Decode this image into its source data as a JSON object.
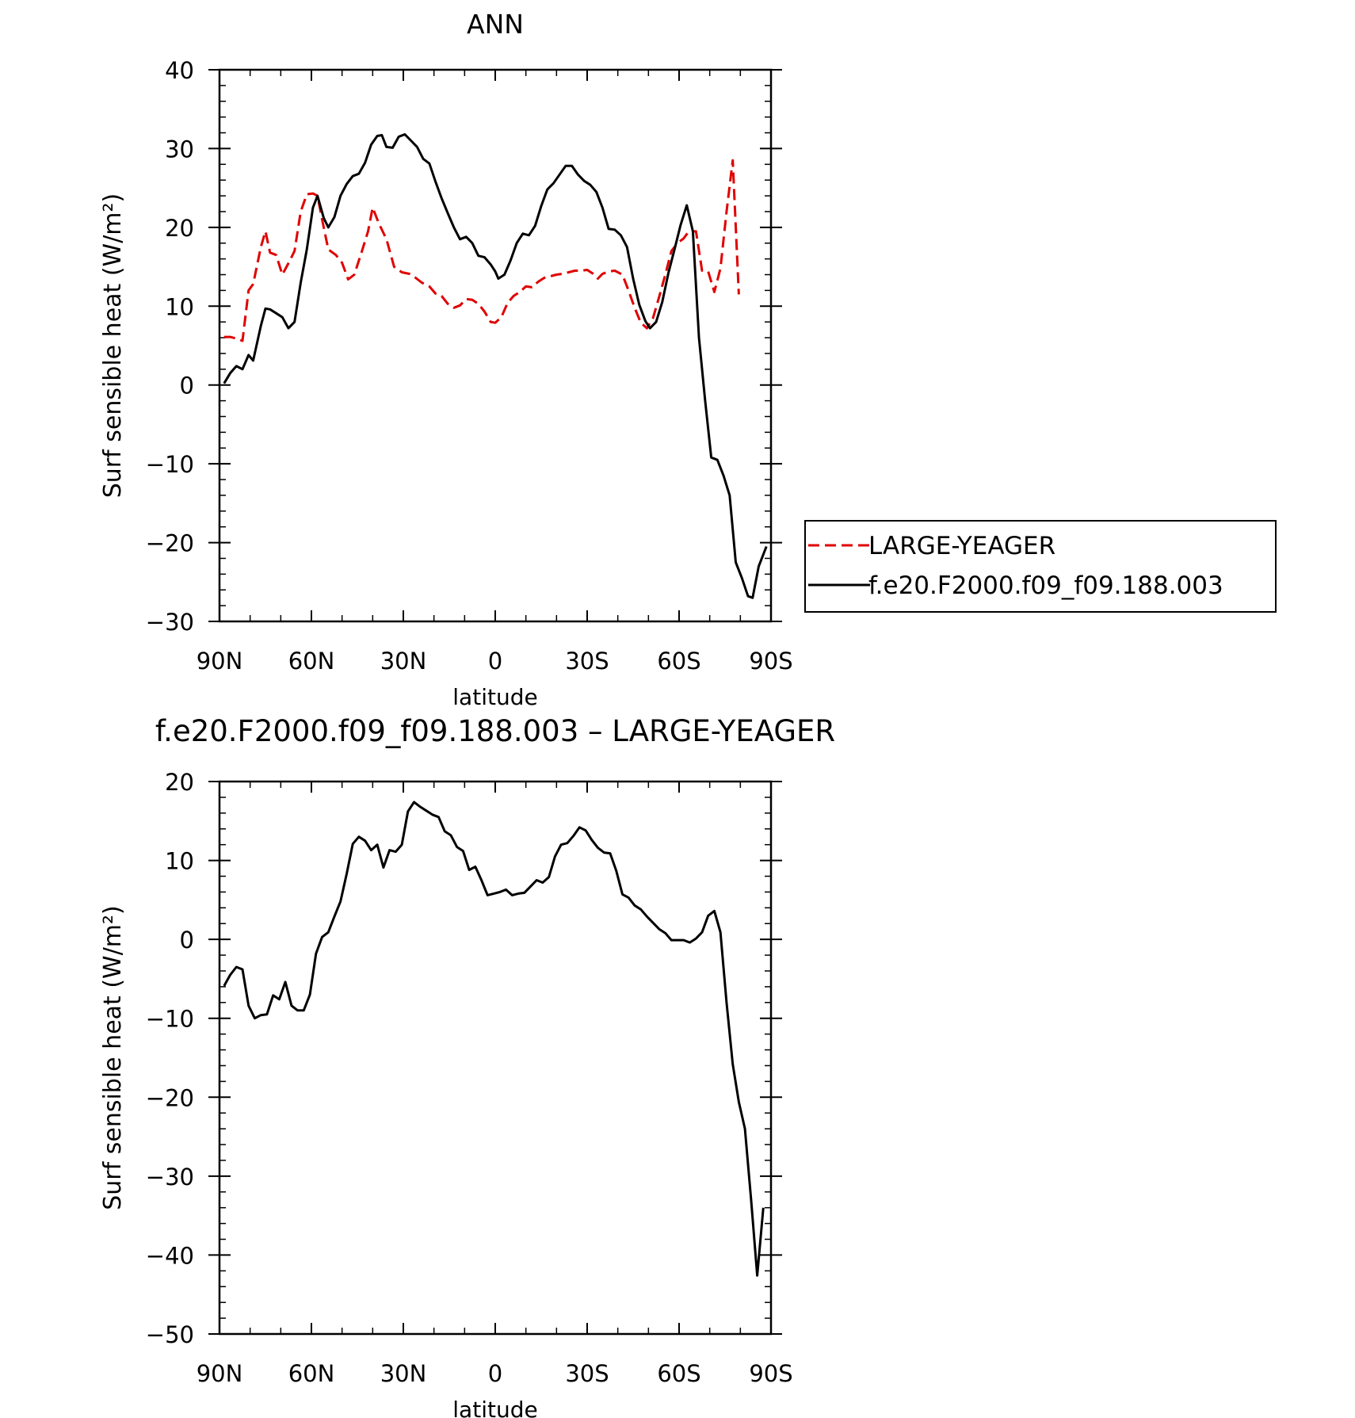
{
  "chart_data": [
    {
      "type": "line",
      "title": "ANN",
      "xlabel": "latitude",
      "ylabel": "Surf sensible heat (W/m²)",
      "xlim": [
        90,
        -90
      ],
      "ylim": [
        -30,
        40
      ],
      "x_ticks": [
        90,
        60,
        30,
        0,
        -30,
        -60,
        -90
      ],
      "x_tick_labels": [
        "90N",
        "60N",
        "30N",
        "0",
        "30S",
        "60S",
        "90S"
      ],
      "y_ticks": [
        -30,
        -20,
        -10,
        0,
        10,
        20,
        30,
        40
      ],
      "grid": false,
      "legend": {
        "placement": "right",
        "entries": [
          "LARGE-YEAGER",
          "f.e20.F2000.f09_f09.188.003"
        ]
      },
      "series": [
        {
          "name": "LARGE-YEAGER",
          "color": "#e00000",
          "style": "dashed",
          "points": [
            [
              88.5,
              6.1
            ],
            [
              86.5,
              6.1
            ],
            [
              84.5,
              5.9
            ],
            [
              82.5,
              5.6
            ],
            [
              80.5,
              12.0
            ],
            [
              79,
              12.8
            ],
            [
              76.5,
              17.5
            ],
            [
              75,
              19.5
            ],
            [
              73.5,
              16.8
            ],
            [
              71.5,
              16.5
            ],
            [
              69.5,
              14.0
            ],
            [
              67,
              15.8
            ],
            [
              65.5,
              17.0
            ],
            [
              63.5,
              22.0
            ],
            [
              61.5,
              24.2
            ],
            [
              59.5,
              24.3
            ],
            [
              58,
              24.0
            ],
            [
              56.5,
              21.0
            ],
            [
              54.5,
              17.2
            ],
            [
              52,
              16.5
            ],
            [
              50,
              15.5
            ],
            [
              48,
              13.4
            ],
            [
              46,
              14.0
            ],
            [
              43.5,
              17.0
            ],
            [
              41.5,
              19.5
            ],
            [
              40,
              22.5
            ],
            [
              38,
              20.5
            ],
            [
              35.5,
              18.5
            ],
            [
              33,
              15.0
            ],
            [
              30.5,
              14.3
            ],
            [
              28,
              14.1
            ],
            [
              26,
              13.6
            ],
            [
              24,
              13.0
            ],
            [
              21.5,
              12.5
            ],
            [
              19.5,
              11.6
            ],
            [
              17.5,
              11.3
            ],
            [
              15.5,
              10.3
            ],
            [
              13.5,
              9.8
            ],
            [
              11.5,
              10.1
            ],
            [
              9.5,
              10.9
            ],
            [
              7.5,
              10.8
            ],
            [
              5.5,
              10.3
            ],
            [
              3.5,
              9.3
            ],
            [
              1.5,
              8.0
            ],
            [
              0,
              7.9
            ],
            [
              -2,
              8.6
            ],
            [
              -4,
              10.4
            ],
            [
              -6,
              11.3
            ],
            [
              -8,
              11.8
            ],
            [
              -10,
              12.5
            ],
            [
              -12,
              12.4
            ],
            [
              -14,
              13.1
            ],
            [
              -16,
              13.6
            ],
            [
              -18,
              13.8
            ],
            [
              -20,
              14.0
            ],
            [
              -22,
              14.1
            ],
            [
              -24,
              14.3
            ],
            [
              -26,
              14.5
            ],
            [
              -28,
              14.5
            ],
            [
              -30,
              14.6
            ],
            [
              -32,
              14.1
            ],
            [
              -33.5,
              13.5
            ],
            [
              -35,
              14.1
            ],
            [
              -37,
              14.4
            ],
            [
              -39,
              14.5
            ],
            [
              -41.5,
              14.0
            ],
            [
              -43.5,
              12.0
            ],
            [
              -45.5,
              9.8
            ],
            [
              -47.5,
              7.9
            ],
            [
              -49.5,
              7.2
            ],
            [
              -51.5,
              8.5
            ],
            [
              -53.5,
              11.2
            ],
            [
              -55.5,
              14.0
            ],
            [
              -57.5,
              17.0
            ],
            [
              -59.5,
              18.0
            ],
            [
              -61.5,
              18.6
            ],
            [
              -63,
              19.4
            ],
            [
              -65.5,
              19.5
            ],
            [
              -67.5,
              14.5
            ],
            [
              -69.5,
              14.4
            ],
            [
              -71.5,
              11.8
            ],
            [
              -73.5,
              14.8
            ],
            [
              -75.5,
              22.0
            ],
            [
              -77.5,
              28.5
            ],
            [
              -79.5,
              11.5
            ]
          ]
        },
        {
          "name": "f.e20.F2000.f09_f09.188.003",
          "color": "#000000",
          "style": "solid",
          "points": [
            [
              88.5,
              0.2
            ],
            [
              86.5,
              1.5
            ],
            [
              84.5,
              2.4
            ],
            [
              82.5,
              2.0
            ],
            [
              80.5,
              3.8
            ],
            [
              79,
              3.1
            ],
            [
              76.5,
              7.5
            ],
            [
              75,
              9.7
            ],
            [
              73.5,
              9.6
            ],
            [
              71.5,
              9.1
            ],
            [
              69.5,
              8.6
            ],
            [
              67.5,
              7.2
            ],
            [
              65.5,
              8.0
            ],
            [
              63.5,
              13.0
            ],
            [
              61.5,
              17.2
            ],
            [
              59.5,
              22.5
            ],
            [
              58,
              24.0
            ],
            [
              56,
              21.2
            ],
            [
              54.5,
              20.0
            ],
            [
              52.5,
              21.3
            ],
            [
              50.5,
              24.0
            ],
            [
              48.5,
              25.5
            ],
            [
              46.5,
              26.5
            ],
            [
              44.5,
              26.8
            ],
            [
              42.5,
              28.2
            ],
            [
              40.5,
              30.5
            ],
            [
              38.5,
              31.6
            ],
            [
              37,
              31.7
            ],
            [
              35.5,
              30.2
            ],
            [
              33.5,
              30.1
            ],
            [
              31.5,
              31.5
            ],
            [
              29.5,
              31.8
            ],
            [
              27.5,
              31.0
            ],
            [
              25.5,
              30.2
            ],
            [
              23.5,
              28.7
            ],
            [
              21.5,
              28.1
            ],
            [
              19.5,
              25.8
            ],
            [
              17.5,
              23.7
            ],
            [
              15.5,
              21.8
            ],
            [
              13.5,
              20.0
            ],
            [
              11.5,
              18.5
            ],
            [
              9.5,
              18.8
            ],
            [
              7.5,
              18.0
            ],
            [
              5.5,
              16.4
            ],
            [
              3.5,
              16.2
            ],
            [
              1.5,
              15.3
            ],
            [
              0,
              14.4
            ],
            [
              -1,
              13.5
            ],
            [
              -3,
              14.0
            ],
            [
              -5,
              15.8
            ],
            [
              -7,
              18.0
            ],
            [
              -9,
              19.2
            ],
            [
              -11,
              19.0
            ],
            [
              -13,
              20.2
            ],
            [
              -15,
              22.7
            ],
            [
              -17,
              24.8
            ],
            [
              -19,
              25.6
            ],
            [
              -21,
              26.7
            ],
            [
              -23,
              27.8
            ],
            [
              -25,
              27.8
            ],
            [
              -27,
              26.7
            ],
            [
              -29,
              25.9
            ],
            [
              -31,
              25.4
            ],
            [
              -33,
              24.5
            ],
            [
              -35,
              22.5
            ],
            [
              -37,
              19.8
            ],
            [
              -39,
              19.7
            ],
            [
              -41,
              19.0
            ],
            [
              -43,
              17.5
            ],
            [
              -45,
              13.5
            ],
            [
              -47,
              10.2
            ],
            [
              -49,
              8.1
            ],
            [
              -50.5,
              7.2
            ],
            [
              -52.5,
              8.0
            ],
            [
              -54.5,
              10.5
            ],
            [
              -56.5,
              14.2
            ],
            [
              -58.5,
              17.2
            ],
            [
              -60.5,
              20.3
            ],
            [
              -62.5,
              22.8
            ],
            [
              -64.5,
              19.5
            ],
            [
              -66.5,
              6.0
            ],
            [
              -68.5,
              -2.0
            ],
            [
              -70.5,
              -9.2
            ],
            [
              -72.5,
              -9.5
            ],
            [
              -74.5,
              -11.5
            ],
            [
              -76.5,
              -14.0
            ],
            [
              -78.5,
              -22.5
            ],
            [
              -80.5,
              -24.5
            ],
            [
              -82.5,
              -26.8
            ],
            [
              -84,
              -27.0
            ],
            [
              -86,
              -23.0
            ],
            [
              -88.5,
              -20.5
            ]
          ]
        }
      ]
    },
    {
      "type": "line",
      "title": "f.e20.F2000.f09_f09.188.003 – LARGE-YEAGER",
      "xlabel": "latitude",
      "ylabel": "Surf sensible heat (W/m²)",
      "xlim": [
        90,
        -90
      ],
      "ylim": [
        -50,
        20
      ],
      "x_ticks": [
        90,
        60,
        30,
        0,
        -30,
        -60,
        -90
      ],
      "x_tick_labels": [
        "90N",
        "60N",
        "30N",
        "0",
        "30S",
        "60S",
        "90S"
      ],
      "y_ticks": [
        -50,
        -40,
        -30,
        -20,
        -10,
        0,
        10,
        20
      ],
      "grid": false,
      "series": [
        {
          "color": "#000000",
          "style": "solid",
          "points": [
            [
              88.5,
              -5.9
            ],
            [
              86.5,
              -4.5
            ],
            [
              84.5,
              -3.5
            ],
            [
              82.5,
              -3.8
            ],
            [
              80.5,
              -8.4
            ],
            [
              78.5,
              -10.0
            ],
            [
              76.5,
              -9.6
            ],
            [
              74.5,
              -9.5
            ],
            [
              72.5,
              -7.1
            ],
            [
              70.5,
              -7.6
            ],
            [
              68.5,
              -5.4
            ],
            [
              66.5,
              -8.4
            ],
            [
              64.5,
              -9.0
            ],
            [
              62.5,
              -9.0
            ],
            [
              60.5,
              -7.0
            ],
            [
              58.5,
              -1.8
            ],
            [
              56.5,
              0.3
            ],
            [
              54.5,
              0.9
            ],
            [
              52.5,
              2.9
            ],
            [
              50.5,
              4.8
            ],
            [
              48.5,
              8.3
            ],
            [
              46.5,
              12.1
            ],
            [
              44.5,
              13.0
            ],
            [
              42.5,
              12.5
            ],
            [
              40.5,
              11.3
            ],
            [
              38.5,
              12.0
            ],
            [
              36.5,
              9.1
            ],
            [
              34.5,
              11.3
            ],
            [
              32.5,
              11.1
            ],
            [
              30.5,
              12.0
            ],
            [
              28.5,
              16.2
            ],
            [
              26.5,
              17.4
            ],
            [
              24.5,
              16.8
            ],
            [
              22.5,
              16.3
            ],
            [
              20.5,
              15.8
            ],
            [
              18.5,
              15.5
            ],
            [
              16.5,
              13.7
            ],
            [
              14.5,
              13.2
            ],
            [
              12.5,
              11.7
            ],
            [
              10.5,
              11.2
            ],
            [
              8.5,
              8.8
            ],
            [
              6.5,
              9.2
            ],
            [
              4.5,
              7.5
            ],
            [
              2.5,
              5.6
            ],
            [
              0.5,
              5.8
            ],
            [
              -1.5,
              6.0
            ],
            [
              -3.5,
              6.3
            ],
            [
              -5.5,
              5.6
            ],
            [
              -7.5,
              5.8
            ],
            [
              -9.5,
              5.9
            ],
            [
              -11.5,
              6.7
            ],
            [
              -13.5,
              7.5
            ],
            [
              -15.5,
              7.2
            ],
            [
              -17.5,
              7.9
            ],
            [
              -19.5,
              10.5
            ],
            [
              -21.5,
              12.0
            ],
            [
              -23.5,
              12.2
            ],
            [
              -25.5,
              13.1
            ],
            [
              -27.5,
              14.2
            ],
            [
              -29.5,
              13.8
            ],
            [
              -31.5,
              12.6
            ],
            [
              -33.5,
              11.6
            ],
            [
              -35.5,
              11.0
            ],
            [
              -37.5,
              10.9
            ],
            [
              -39.5,
              8.7
            ],
            [
              -41.5,
              5.7
            ],
            [
              -43.5,
              5.3
            ],
            [
              -45.5,
              4.3
            ],
            [
              -47.5,
              3.8
            ],
            [
              -49.5,
              2.9
            ],
            [
              -51.5,
              2.1
            ],
            [
              -53.5,
              1.3
            ],
            [
              -55.5,
              0.8
            ],
            [
              -57.5,
              -0.1
            ],
            [
              -59.5,
              -0.1
            ],
            [
              -61.5,
              -0.1
            ],
            [
              -63.5,
              -0.4
            ],
            [
              -65.5,
              0.1
            ],
            [
              -67.5,
              0.9
            ],
            [
              -69.5,
              3.0
            ],
            [
              -71.5,
              3.6
            ],
            [
              -73.5,
              0.9
            ],
            [
              -75.5,
              -8.0
            ],
            [
              -77.5,
              -15.8
            ],
            [
              -79.5,
              -20.6
            ],
            [
              -81.5,
              -24.0
            ],
            [
              -83.5,
              -33.0
            ],
            [
              -85.5,
              -42.6
            ],
            [
              -87.5,
              -34.0
            ]
          ]
        }
      ]
    }
  ]
}
